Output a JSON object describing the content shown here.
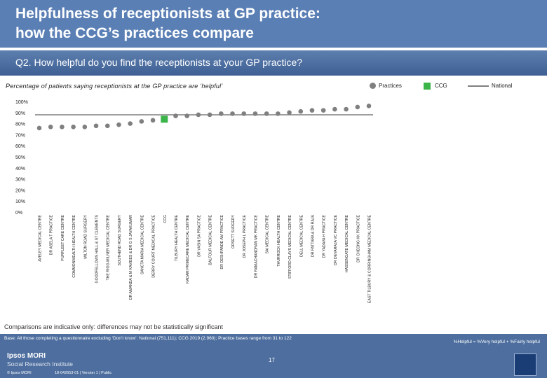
{
  "header": {
    "title_line1": "Helpfulness of receptionists at GP practice:",
    "title_line2": "how the CCG’s practices compare",
    "question": "Q2. How helpful do you find the receptionists at your GP practice?"
  },
  "subtitle": "Percentage of patients saying receptionists at the GP practice are ‘helpful’",
  "legend": {
    "practices": "Practices",
    "ccg": "CCG",
    "national": "National"
  },
  "colors": {
    "practice": "#7f7f7f",
    "ccg": "#3bb54a",
    "national": "#7f7f7f",
    "header": "#5a7fb5"
  },
  "chart_data": {
    "type": "scatter",
    "ylim": [
      0,
      100
    ],
    "yticks": [
      "0%",
      "10%",
      "20%",
      "30%",
      "40%",
      "50%",
      "60%",
      "70%",
      "80%",
      "90%",
      "100%"
    ],
    "national_value": 88,
    "categories": [
      "AVELEY MEDICAL CENTRE",
      "DR ASELA T PRACTICE",
      "PURFLEET CARE CENTRE",
      "COMMONWEALTH HEALTH CENTRE",
      "MILTON ROAD SURGERY",
      "GOODFELLOWS HALL & ST CLEMENTS",
      "THE RIGG-MILNER MEDICAL CENTRE",
      "SOUTHEND ROAD SURGERY",
      "DR AMANDA & M KAVIEES & DR G S JAYAKUMAR",
      "SANCTA MARIA MEDICAL CENTRE",
      "DERRY COURT MEDICAL PRACTICE",
      "CCG",
      "TILBURY HEALTH CENTRE",
      "KADAM PRIMECARE MEDICAL CENTRE",
      "DR YASIN SA PRACTICE",
      "BALFOUR MEDICAL CENTRE",
      "DR DESHPANDE AM PRACTICE",
      "ORSETT SURGERY",
      "DR JOSEPH L PRACTICE",
      "DR RAMACHANDRAN MK PRACTICE",
      "SAI MEDICAL CENTRE",
      "THURROCK HEALTH CENTRE",
      "STIFFORD CLAYS MEDICAL CENTRE",
      "DELL MEDICAL CENTRE",
      "DR PATTARA & DR RAJA",
      "DR YADAVA H PRACTICE",
      "DR DEVARAJA VC PRACTICE",
      "HASSENGATE MEDICAL CENTRE",
      "DR CHEONG KK PRACTICE",
      "EAST TILBURY & CORRINGHAM MEDICAL CENTRE"
    ],
    "values": [
      76,
      77,
      77,
      77,
      77,
      78,
      78,
      79,
      80,
      82,
      83,
      84,
      87,
      87,
      88,
      88,
      89,
      89,
      89,
      89,
      89,
      89,
      90,
      91,
      92,
      92,
      93,
      93,
      95,
      96
    ],
    "ccg_index": 11
  },
  "note": "Comparisons are indicative only: differences may not be statistically significant",
  "footer": {
    "base": "Base: All those completing a questionnaire excluding ‘Don’t know’: National (751,111); CCG 2019 (2,960); Practice bases range from 31 to 122",
    "formula": "%Helpful = %Very helpful + %Fairly helpful",
    "logo_line1": "Ipsos MORI",
    "logo_line2": "Social Research Institute",
    "copyright": "© Ipsos MORI",
    "jobref": "18-042653-01 | Version 1 | Public",
    "page": "17"
  }
}
